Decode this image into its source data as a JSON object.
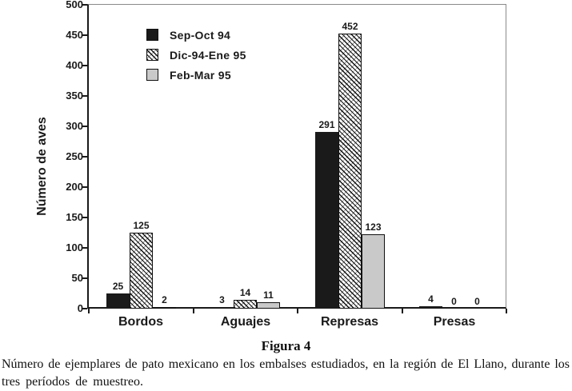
{
  "figure": {
    "title": "Figura 4",
    "caption_line1": "Número de ejemplares de pato mexicano en los embalses estudiados, en la región de El Llano, durante los",
    "caption_line2": "tres períodos de muestreo."
  },
  "chart_data": {
    "type": "bar",
    "title": "",
    "xlabel": "",
    "ylabel": "Número de aves",
    "ylim": [
      0,
      500
    ],
    "yticks": [
      0,
      50,
      100,
      150,
      200,
      250,
      300,
      350,
      400,
      450,
      500
    ],
    "grid": false,
    "bar_value_labels_shown": true,
    "legend_position": "top-left-inside",
    "categories": [
      "Bordos",
      "Aguajes",
      "Represas",
      "Presas"
    ],
    "series": [
      {
        "name": "Sep-Oct 94",
        "style": "solid-black",
        "values": [
          25,
          3,
          291,
          4
        ]
      },
      {
        "name": "Dic-94-Ene 95",
        "style": "hatch",
        "values": [
          125,
          14,
          452,
          0
        ]
      },
      {
        "name": "Feb-Mar 95",
        "style": "gray",
        "values": [
          2,
          11,
          123,
          0
        ]
      }
    ]
  },
  "colors": {
    "background": "#ffffff",
    "bar_black": "#1a1a1a",
    "bar_gray": "#c9c9c9",
    "hatch_line": "#111111",
    "axis": "#1a1a1a",
    "frame_gray": "#8a8a8a",
    "text": "#1a1a1a"
  }
}
